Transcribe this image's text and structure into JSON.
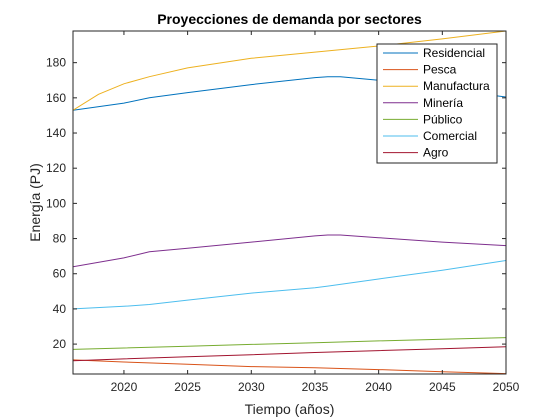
{
  "chart_data": {
    "type": "line",
    "title": "Proyecciones de demanda por sectores",
    "xlabel": "Tiempo (años)",
    "ylabel": "Energía (PJ)",
    "xlim": [
      2016,
      2050
    ],
    "ylim": [
      3,
      198
    ],
    "xticks": [
      2020,
      2025,
      2030,
      2035,
      2040,
      2045,
      2050
    ],
    "yticks": [
      20,
      40,
      60,
      80,
      100,
      120,
      140,
      160,
      180
    ],
    "grid": false,
    "legend_position": "top-right",
    "series": [
      {
        "name": "Residencial",
        "color": "#0072BD",
        "x": [
          2016,
          2020,
          2022,
          2025,
          2030,
          2035,
          2036,
          2037,
          2040,
          2045,
          2050
        ],
        "y": [
          153,
          157,
          160,
          163,
          167.5,
          171.5,
          172,
          172,
          170,
          165,
          160.5
        ]
      },
      {
        "name": "Pesca",
        "color": "#D95319",
        "x": [
          2016,
          2020,
          2025,
          2030,
          2035,
          2040,
          2045,
          2050
        ],
        "y": [
          11,
          9.8,
          8.5,
          7.2,
          6.5,
          5.5,
          4.3,
          3.2
        ]
      },
      {
        "name": "Manufactura",
        "color": "#EDB120",
        "x": [
          2016,
          2018,
          2020,
          2022,
          2025,
          2030,
          2035,
          2040,
          2045,
          2050
        ],
        "y": [
          153,
          162,
          168,
          172,
          177,
          182.5,
          186,
          189.5,
          193.5,
          198
        ]
      },
      {
        "name": "Minería",
        "color": "#7E2F8E",
        "x": [
          2016,
          2020,
          2022,
          2025,
          2030,
          2035,
          2036,
          2037,
          2040,
          2045,
          2050
        ],
        "y": [
          64,
          69,
          72.5,
          74.5,
          78,
          81.5,
          82,
          82,
          80.5,
          78,
          76
        ]
      },
      {
        "name": "Público",
        "color": "#77AC30",
        "x": [
          2016,
          2020,
          2025,
          2030,
          2035,
          2040,
          2045,
          2050
        ],
        "y": [
          17,
          17.8,
          18.8,
          19.8,
          20.8,
          21.8,
          22.8,
          23.7
        ]
      },
      {
        "name": "Comercial",
        "color": "#4DBEEE",
        "x": [
          2016,
          2020,
          2022,
          2025,
          2030,
          2035,
          2036,
          2040,
          2045,
          2050
        ],
        "y": [
          40,
          41.5,
          42.5,
          45,
          49,
          52,
          53,
          57,
          62,
          67.5
        ]
      },
      {
        "name": "Agro",
        "color": "#A2142F",
        "x": [
          2016,
          2020,
          2025,
          2030,
          2035,
          2040,
          2045,
          2050
        ],
        "y": [
          10.5,
          11.6,
          12.8,
          14,
          15.2,
          16.3,
          17.4,
          18.5
        ]
      }
    ]
  }
}
